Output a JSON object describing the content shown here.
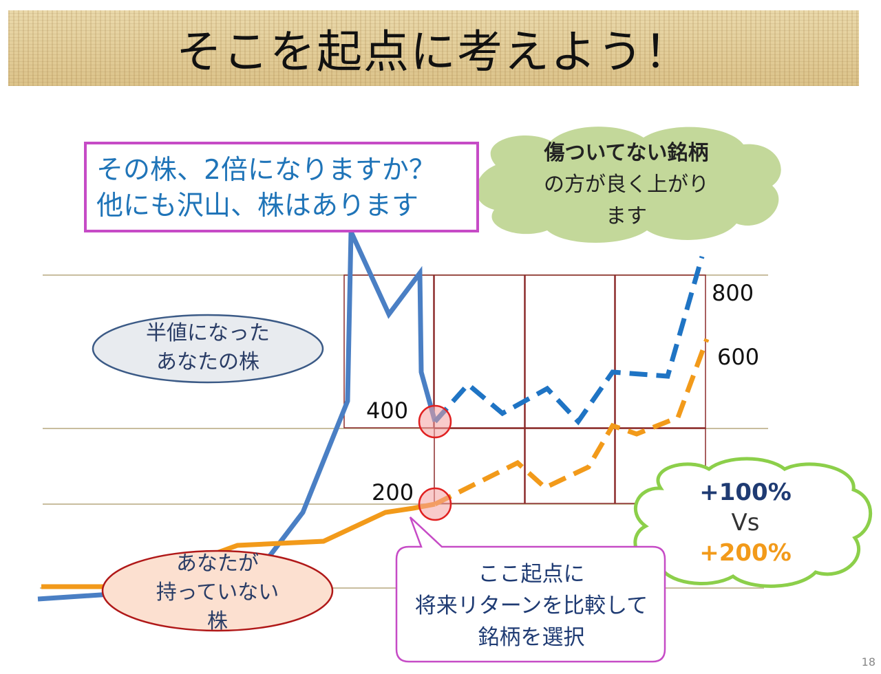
{
  "title": "そこを起点に考えよう！",
  "question": {
    "line1": "その株、2倍になりますか？",
    "line2": "他にも沢山、株はあります"
  },
  "green_cloud": {
    "line1": "傷ついてない銘柄",
    "line2": "の方が良く上がり",
    "line3": "ます"
  },
  "half_value_oval": {
    "line1": "半値になった",
    "line2": "あなたの株"
  },
  "not_owned_oval": {
    "line1": "あなたが",
    "line2": "持っていない",
    "line3": "株"
  },
  "callout": {
    "line1": "ここ起点に",
    "line2": "将来リターンを比較して",
    "line3": "銘柄を選択"
  },
  "comparison_cloud": {
    "line1": "+100%",
    "line2": "Vs",
    "line3": "+200%"
  },
  "page_number": "18",
  "colors": {
    "blue_line": "#4a7fc4",
    "blue_dash": "#1f74c4",
    "orange_line": "#f29a1a",
    "grid_box": "#8b2a2a",
    "marker_fill": "#f4a0a0",
    "marker_stroke": "#e02020",
    "question_border": "#c64bc6",
    "green_cloud": "#c3d89a",
    "comparison_cloud_border": "#8ccf4a"
  },
  "chart_data": {
    "type": "line",
    "value_labels": {
      "blue_start": "400",
      "orange_start": "200",
      "blue_end": "800",
      "orange_end": "600"
    },
    "start_point_index": 9,
    "series": [
      {
        "style": "solid",
        "color": "#4a7fc4",
        "values": [
          -30,
          -10,
          20,
          180,
          450,
          860,
          660,
          760,
          520,
          400
        ]
      },
      {
        "style": "dashed",
        "color": "#1f74c4",
        "values": [
          400,
          490,
          420,
          480,
          400,
          520,
          510,
          800
        ]
      },
      {
        "style": "solid",
        "color": "#f29a1a",
        "values": [
          0,
          0,
          100,
          110,
          180,
          190,
          200
        ]
      },
      {
        "style": "dashed",
        "color": "#f29a1a",
        "values": [
          200,
          300,
          240,
          290,
          390,
          370,
          410,
          600
        ]
      }
    ]
  }
}
